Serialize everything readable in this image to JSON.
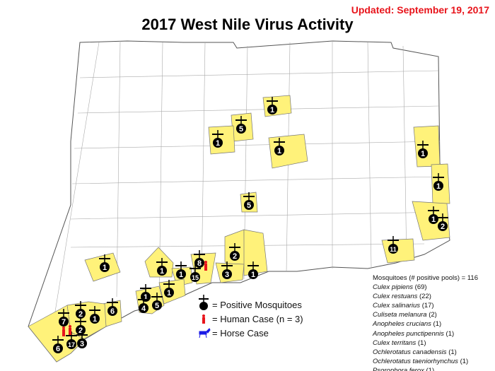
{
  "header": {
    "updated": "Updated: September 19, 2017",
    "title": "2017 West Nile Virus Activity"
  },
  "colors": {
    "positive_town": "#fff27a",
    "mosquito_marker": "#000000",
    "human_case": "#e8141b",
    "horse_case": "#1a1ae6",
    "updated_text": "#e8141b"
  },
  "markers": [
    {
      "count": "1",
      "type": "mosquito"
    },
    {
      "count": "5",
      "type": "mosquito"
    },
    {
      "count": "1",
      "type": "mosquito"
    },
    {
      "count": "1",
      "type": "mosquito"
    },
    {
      "count": "1",
      "type": "mosquito"
    },
    {
      "count": "1",
      "type": "mosquito"
    },
    {
      "count": "1",
      "type": "mosquito"
    },
    {
      "count": "2",
      "type": "mosquito"
    },
    {
      "count": "11",
      "type": "mosquito"
    },
    {
      "count": "5",
      "type": "mosquito"
    },
    {
      "count": "1",
      "type": "mosquito"
    },
    {
      "count": "2",
      "type": "mosquito"
    },
    {
      "count": "8",
      "type": "mosquito"
    },
    {
      "count": "1",
      "type": "mosquito"
    },
    {
      "count": "1",
      "type": "mosquito"
    },
    {
      "count": "15",
      "type": "mosquito"
    },
    {
      "count": "3",
      "type": "mosquito"
    },
    {
      "count": "1",
      "type": "mosquito"
    },
    {
      "count": "1",
      "type": "mosquito"
    },
    {
      "count": "1",
      "type": "mosquito"
    },
    {
      "count": "5",
      "type": "mosquito"
    },
    {
      "count": "4",
      "type": "mosquito"
    },
    {
      "count": "6",
      "type": "mosquito"
    },
    {
      "count": "2",
      "type": "mosquito"
    },
    {
      "count": "1",
      "type": "mosquito"
    },
    {
      "count": "7",
      "type": "mosquito"
    },
    {
      "count": "2",
      "type": "mosquito"
    },
    {
      "count": "3",
      "type": "mosquito"
    },
    {
      "count": "17",
      "type": "mosquito"
    },
    {
      "count": "6",
      "type": "mosquito"
    }
  ],
  "human_cases": 3,
  "key": {
    "mosquito": "= Positive Mosquitoes",
    "human": "= Human Case (n = 3)",
    "horse": "= Horse Case"
  },
  "legend": {
    "heading": "Mosquitoes (# positive pools) = 116",
    "species": [
      {
        "name": "Culex pipiens",
        "count": "(69)"
      },
      {
        "name": "Culex restuans",
        "count": "(22)"
      },
      {
        "name": "Culex salinarius",
        "count": "(17)"
      },
      {
        "name": "Culiseta melanura",
        "count": "(2)"
      },
      {
        "name": "Anopheles crucians",
        "count": "(1)"
      },
      {
        "name": "Anopheles punctipennis",
        "count": "(1)"
      },
      {
        "name": "Culex territans",
        "count": "(1)"
      },
      {
        "name": "Ochlerotatus canadensis",
        "count": "(1)"
      },
      {
        "name": "Ochlerotatus taeniorhynchus",
        "count": "(1)"
      },
      {
        "name": "Psorophora ferox",
        "count": "(1)"
      }
    ]
  }
}
